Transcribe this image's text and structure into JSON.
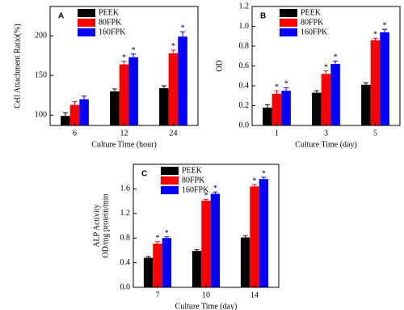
{
  "chart_data": [
    {
      "type": "bar",
      "panel": "A",
      "xlabel": "Culture Time (hour)",
      "ylabel": [
        "Cell Attachment Ratio(%)"
      ],
      "categories": [
        "6",
        "12",
        "24"
      ],
      "ylim": [
        87,
        237
      ],
      "yticks": [
        100,
        150,
        200
      ],
      "series": [
        {
          "name": "PEEK",
          "color": "#000000",
          "values": [
            99,
            130,
            134
          ],
          "errors": [
            4,
            3,
            3
          ],
          "significance": [
            null,
            null,
            null
          ]
        },
        {
          "name": "80FPK",
          "color": "#ff0000",
          "values": [
            113,
            164,
            178
          ],
          "errors": [
            4,
            4,
            4
          ],
          "significance": [
            null,
            "*",
            "*"
          ]
        },
        {
          "name": "160FPK",
          "color": "#0000ff",
          "values": [
            120,
            173,
            199
          ],
          "errors": [
            4,
            4,
            6
          ],
          "significance": [
            null,
            "*",
            "*"
          ]
        }
      ]
    },
    {
      "type": "bar",
      "panel": "B",
      "xlabel": "Culture Time (day)",
      "ylabel": [
        "OD"
      ],
      "categories": [
        "1",
        "3",
        "5"
      ],
      "ylim": [
        0,
        1.2
      ],
      "yticks": [
        {
          "value": 0,
          "label": "0.0"
        },
        0.2,
        0.4,
        0.6,
        0.8,
        {
          "value": 1,
          "label": "1.0"
        },
        1.2
      ],
      "series": [
        {
          "name": "PEEK",
          "color": "#000000",
          "values": [
            0.18,
            0.33,
            0.41
          ],
          "errors": [
            0.03,
            0.02,
            0.02
          ],
          "significance": [
            null,
            null,
            null
          ]
        },
        {
          "name": "80FPK",
          "color": "#ff0000",
          "values": [
            0.32,
            0.52,
            0.86
          ],
          "errors": [
            0.03,
            0.03,
            0.02
          ],
          "significance": [
            "*",
            "*",
            "*"
          ]
        },
        {
          "name": "160FPK",
          "color": "#0000ff",
          "values": [
            0.35,
            0.62,
            0.94
          ],
          "errors": [
            0.03,
            0.03,
            0.03
          ],
          "significance": [
            "*",
            "*",
            "*"
          ]
        }
      ]
    },
    {
      "type": "bar",
      "panel": "C",
      "xlabel": "Culture Time (day)",
      "ylabel": [
        "ALP Activity",
        "OD/mg protein/min"
      ],
      "categories": [
        "7",
        "10",
        "14"
      ],
      "ylim": [
        0,
        2
      ],
      "yticks": [
        {
          "value": 0,
          "label": "0.0"
        },
        0.4,
        0.8,
        1.2,
        1.6
      ],
      "series": [
        {
          "name": "PEEK",
          "color": "#000000",
          "values": [
            0.48,
            0.59,
            0.81
          ],
          "errors": [
            0.02,
            0.02,
            0.03
          ],
          "significance": [
            null,
            null,
            null
          ]
        },
        {
          "name": "80FPK",
          "color": "#ff0000",
          "values": [
            0.71,
            1.41,
            1.64
          ],
          "errors": [
            0.03,
            0.02,
            0.03
          ],
          "significance": [
            "*",
            "*",
            "*"
          ]
        },
        {
          "name": "160FPK",
          "color": "#0000ff",
          "values": [
            0.8,
            1.52,
            1.76
          ],
          "errors": [
            0.02,
            0.03,
            0.03
          ],
          "significance": [
            "*",
            "*",
            "*"
          ]
        }
      ]
    }
  ]
}
